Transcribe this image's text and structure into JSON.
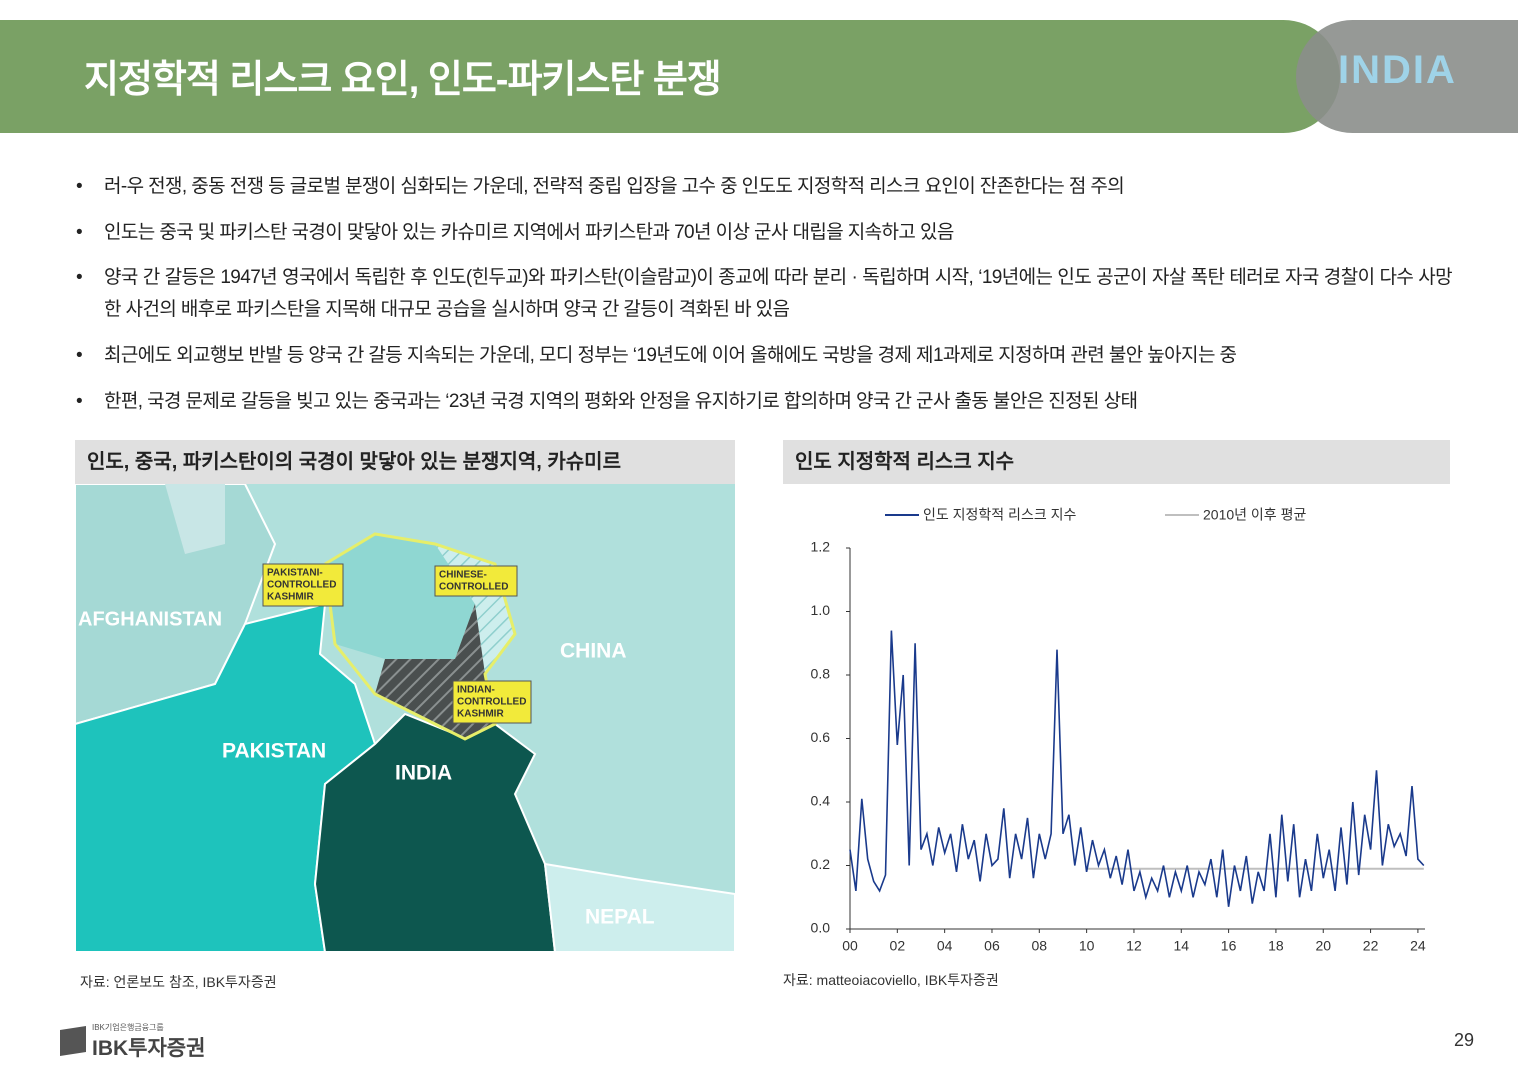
{
  "header": {
    "title": "지정학적 리스크 요인, 인도-파키스탄 분쟁",
    "logo_text": "INDIA"
  },
  "bullets": [
    "러-우 전쟁, 중동 전쟁 등 글로벌 분쟁이 심화되는 가운데, 전략적 중립 입장을 고수 중 인도도 지정학적 리스크 요인이 잔존한다는 점 주의",
    "인도는 중국 및 파키스탄 국경이 맞닿아 있는 카슈미르 지역에서 파키스탄과 70년 이상 군사 대립을 지속하고 있음",
    "양국 간 갈등은 1947년 영국에서 독립한 후 인도(힌두교)와 파키스탄(이슬람교)이 종교에 따라 분리 · 독립하며 시작, ‘19년에는 인도 공군이 자살 폭탄 테러로 자국 경찰이 다수 사망한 사건의 배후로 파키스탄을 지목해 대규모 공습을 실시하며 양국 간 갈등이 격화된 바 있음",
    "최근에도 외교행보 반발 등 양국 간 갈등 지속되는 가운데, 모디 정부는 ‘19년도에 이어 올해에도 국방을 경제 제1과제로 지정하며 관련 불안 높아지는 중",
    "한편, 국경 문제로 갈등을 빚고 있는 중국과는 ‘23년 국경 지역의 평화와 안정을 유지하기로 합의하며 양국 간 군사 출동 불안은 진정된 상태"
  ],
  "map": {
    "title": "인도, 중국, 파키스탄이의 국경이 맞닿아 있는 분쟁지역, 카슈미르",
    "labels": {
      "afghanistan": "AFGHANISTAN",
      "china": "CHINA",
      "pakistan": "PAKISTAN",
      "india": "INDIA",
      "nepal": "NEPAL"
    },
    "callouts": {
      "pakistani": [
        "PAKISTANI-",
        "CONTROLLED",
        "KASHMIR"
      ],
      "chinese": [
        "CHINESE-",
        "CONTROLLED"
      ],
      "indian": [
        "INDIAN-",
        "CONTROLLED",
        "KASHMIR"
      ]
    },
    "source": "자료: 언론보도 참조, IBK투자증권"
  },
  "chart_panel": {
    "title": "인도 지정학적 리스크 지수",
    "source": "자료: matteoiacoviello, IBK투자증권"
  },
  "chart_data": {
    "type": "line",
    "xlim": [
      0,
      24.3
    ],
    "xticks": [
      {
        "value": 0,
        "label": "00"
      },
      {
        "value": 2,
        "label": "02"
      },
      {
        "value": 4,
        "label": "04"
      },
      {
        "value": 6,
        "label": "06"
      },
      {
        "value": 8,
        "label": "08"
      },
      10,
      12,
      14,
      16,
      18,
      20,
      22,
      24
    ],
    "ylim": [
      0,
      1.2
    ],
    "yticks": [
      {
        "value": 0,
        "label": "0.0"
      },
      0.2,
      0.4,
      0.6,
      0.8,
      {
        "value": 1,
        "label": "1.0"
      },
      1.2
    ],
    "series": [
      {
        "name": "인도 지정학적 리스크 지수",
        "color": "#1a3a8c",
        "x": [
          0,
          0.25,
          0.5,
          0.75,
          1,
          1.25,
          1.5,
          1.75,
          2,
          2.25,
          2.5,
          2.75,
          3,
          3.25,
          3.5,
          3.75,
          4,
          4.25,
          4.5,
          4.75,
          5,
          5.25,
          5.5,
          5.75,
          6,
          6.25,
          6.5,
          6.75,
          7,
          7.25,
          7.5,
          7.75,
          8,
          8.25,
          8.5,
          8.75,
          9,
          9.25,
          9.5,
          9.75,
          10,
          10.25,
          10.5,
          10.75,
          11,
          11.25,
          11.5,
          11.75,
          12,
          12.25,
          12.5,
          12.75,
          13,
          13.25,
          13.5,
          13.75,
          14,
          14.25,
          14.5,
          14.75,
          15,
          15.25,
          15.5,
          15.75,
          16,
          16.25,
          16.5,
          16.75,
          17,
          17.25,
          17.5,
          17.75,
          18,
          18.25,
          18.5,
          18.75,
          19,
          19.25,
          19.5,
          19.75,
          20,
          20.25,
          20.5,
          20.75,
          21,
          21.25,
          21.5,
          21.75,
          22,
          22.25,
          22.5,
          22.75,
          23,
          23.25,
          23.5,
          23.75,
          24,
          24.25
        ],
        "values": [
          0.25,
          0.12,
          0.41,
          0.22,
          0.15,
          0.12,
          0.17,
          0.94,
          0.58,
          0.8,
          0.2,
          0.9,
          0.25,
          0.3,
          0.2,
          0.32,
          0.24,
          0.3,
          0.18,
          0.33,
          0.22,
          0.28,
          0.15,
          0.3,
          0.2,
          0.22,
          0.38,
          0.16,
          0.3,
          0.22,
          0.35,
          0.16,
          0.3,
          0.22,
          0.3,
          0.88,
          0.3,
          0.36,
          0.2,
          0.32,
          0.18,
          0.28,
          0.2,
          0.25,
          0.16,
          0.23,
          0.14,
          0.25,
          0.12,
          0.18,
          0.1,
          0.16,
          0.12,
          0.2,
          0.1,
          0.18,
          0.12,
          0.2,
          0.1,
          0.18,
          0.14,
          0.22,
          0.1,
          0.25,
          0.07,
          0.2,
          0.12,
          0.23,
          0.08,
          0.18,
          0.12,
          0.3,
          0.1,
          0.36,
          0.15,
          0.33,
          0.1,
          0.22,
          0.12,
          0.3,
          0.16,
          0.25,
          0.12,
          0.32,
          0.14,
          0.4,
          0.17,
          0.36,
          0.25,
          0.5,
          0.2,
          0.33,
          0.26,
          0.3,
          0.23,
          0.45,
          0.22,
          0.2
        ]
      },
      {
        "name": "2010년 이후 평균",
        "color": "#bfbfbf",
        "x": [
          10,
          24.25
        ],
        "values": [
          0.19,
          0.19
        ]
      }
    ]
  },
  "footer": {
    "group": "IBK기업은행금융그룹",
    "brand": "IBK투자증권",
    "page": "29"
  }
}
